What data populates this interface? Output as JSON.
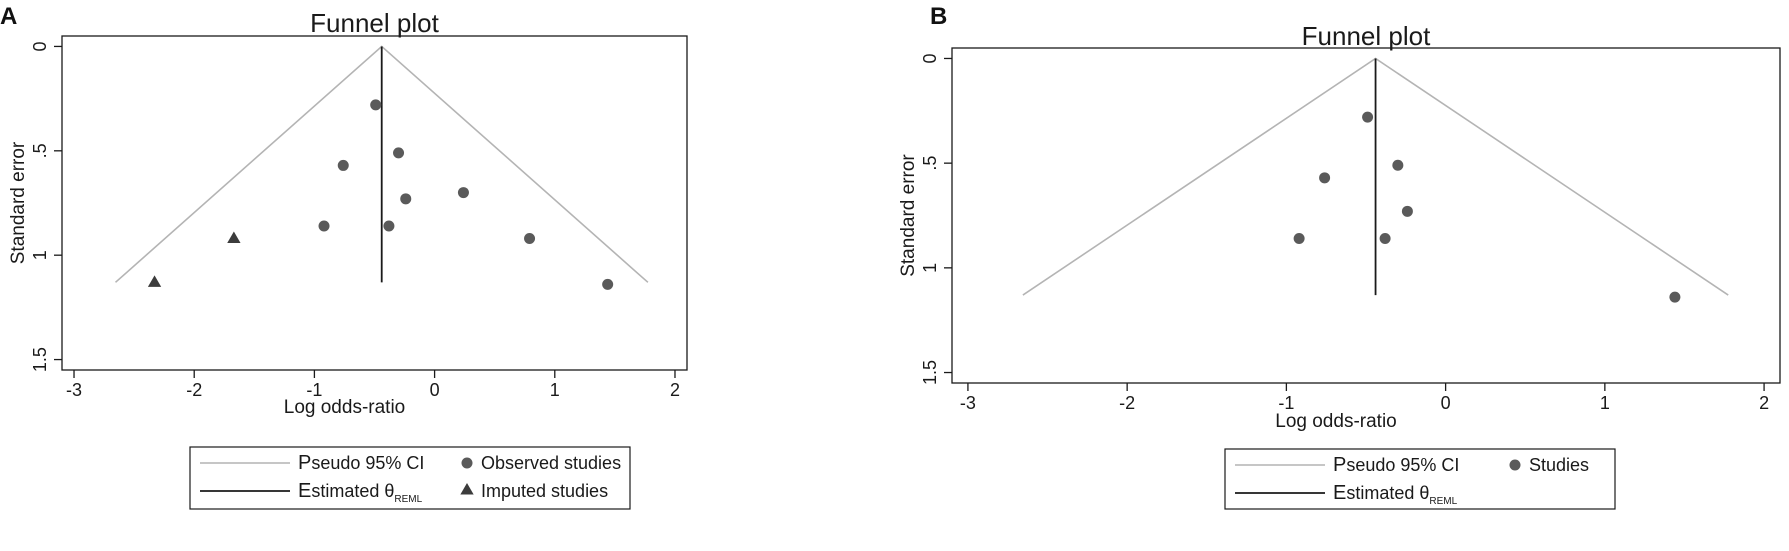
{
  "colors": {
    "ci_line": "#b4b4b4",
    "estimate_line": "#1a1a1a",
    "observed_marker": "#5a5a5a",
    "imputed_marker": "#3c3c3c",
    "frame": "#1a1a1a"
  },
  "chart_data": [
    {
      "panel_label": "A",
      "type": "scatter",
      "title": "Funnel plot",
      "xlabel": "Log odds-ratio",
      "ylabel": "Standard error",
      "xlim": [
        -3.1,
        2.1
      ],
      "ylim": [
        1.55,
        -0.05
      ],
      "y_reversed": true,
      "grid": false,
      "xticks": [
        -3,
        -2,
        -1,
        0,
        1,
        2
      ],
      "xtick_labels": [
        "-3",
        "-2",
        "-1",
        "0",
        "1",
        "2"
      ],
      "yticks": [
        0,
        0.5,
        1,
        1.5
      ],
      "ytick_labels": [
        "0",
        ".5",
        "1",
        "1.5"
      ],
      "estimate": -0.44,
      "se_max": 1.13,
      "legend_position": "bottom",
      "legend": {
        "ci_prefix": "P",
        "ci_rest": "seudo 95% CI",
        "est_prefix": "E",
        "est_rest": "stimated θ",
        "est_sub": "REML",
        "observed_label": "Observed studies",
        "imputed_label": "Imputed studies"
      },
      "series": [
        {
          "name": "Observed studies",
          "marker": "circle",
          "points": [
            [
              -0.49,
              0.28
            ],
            [
              -0.3,
              0.51
            ],
            [
              -0.76,
              0.57
            ],
            [
              0.24,
              0.7
            ],
            [
              -0.24,
              0.73
            ],
            [
              -0.92,
              0.86
            ],
            [
              -0.38,
              0.86
            ],
            [
              0.79,
              0.92
            ],
            [
              1.44,
              1.14
            ]
          ]
        },
        {
          "name": "Imputed studies",
          "marker": "triangle",
          "points": [
            [
              -1.67,
              0.92
            ],
            [
              -2.33,
              1.13
            ]
          ]
        }
      ]
    },
    {
      "panel_label": "B",
      "type": "scatter",
      "title": "Funnel plot",
      "xlabel": "Log odds-ratio",
      "ylabel": "Standard error",
      "xlim": [
        -3.1,
        2.1
      ],
      "ylim": [
        1.55,
        -0.05
      ],
      "y_reversed": true,
      "grid": false,
      "xticks": [
        -3,
        -2,
        -1,
        0,
        1,
        2
      ],
      "xtick_labels": [
        "-3",
        "-2",
        "-1",
        "0",
        "1",
        "2"
      ],
      "yticks": [
        0,
        0.5,
        1,
        1.5
      ],
      "ytick_labels": [
        "0",
        ".5",
        "1",
        "1.5"
      ],
      "estimate": -0.44,
      "se_max": 1.13,
      "legend_position": "bottom",
      "legend": {
        "ci_prefix": "P",
        "ci_rest": "seudo 95% CI",
        "est_prefix": "E",
        "est_rest": "stimated θ",
        "est_sub": "REML",
        "observed_label": "Studies"
      },
      "series": [
        {
          "name": "Studies",
          "marker": "circle",
          "points": [
            [
              -0.49,
              0.28
            ],
            [
              -0.3,
              0.51
            ],
            [
              -0.76,
              0.57
            ],
            [
              -0.24,
              0.73
            ],
            [
              -0.92,
              0.86
            ],
            [
              -0.38,
              0.86
            ],
            [
              1.44,
              1.14
            ]
          ]
        }
      ]
    }
  ]
}
